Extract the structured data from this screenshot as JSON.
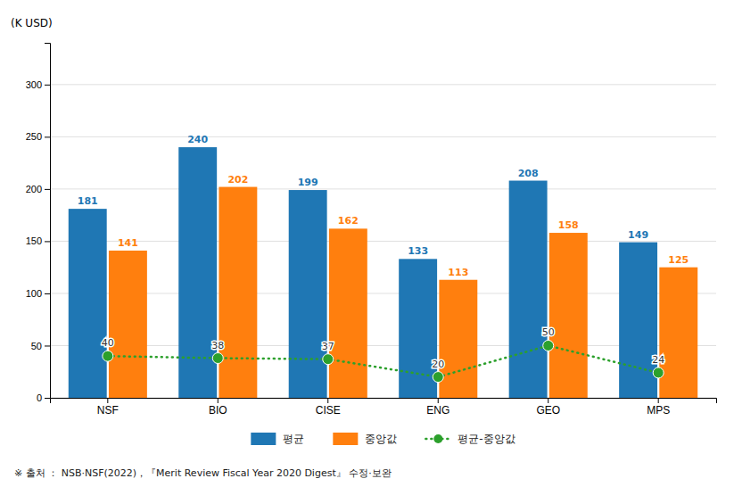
{
  "chart_data": {
    "type": "bar",
    "y_label": "(K USD)",
    "footnote": "※ 출처 ： NSB·NSF(2022)，『Merit Review Fiscal Year 2020 Digest』 수정·보완",
    "categories": [
      "NSF",
      "BIO",
      "CISE",
      "ENG",
      "GEO",
      "MPS"
    ],
    "series": [
      {
        "name": "평균",
        "values": [
          181,
          240,
          199,
          133,
          208,
          149
        ]
      },
      {
        "name": "중앙값",
        "values": [
          141,
          202,
          162,
          113,
          158,
          125
        ]
      },
      {
        "name": "평균-중앙값",
        "type": "line",
        "marker": "circle",
        "line_style": "dotted",
        "values": [
          40,
          38,
          37,
          20,
          50,
          24
        ]
      }
    ],
    "ylim": [
      0,
      340
    ],
    "yticks": [
      0,
      50,
      100,
      150,
      200,
      250,
      300
    ],
    "grid": true,
    "legend": "bottom",
    "data_labels": true
  }
}
